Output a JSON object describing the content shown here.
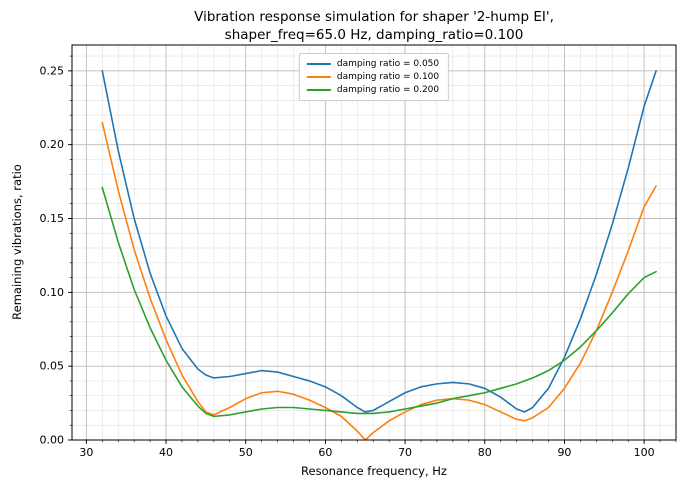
{
  "chart_data": {
    "type": "line",
    "title": "Vibration response simulation for shaper '2-hump EI', shaper_freq=65.0 Hz, damping_ratio=0.100",
    "title_lines": [
      "Vibration response simulation for shaper '2-hump EI',",
      "shaper_freq=65.0 Hz, damping_ratio=0.100"
    ],
    "xlabel": "Resonance frequency, Hz",
    "ylabel": "Remaining vibrations, ratio",
    "xlim": [
      28.2,
      104.0
    ],
    "ylim": [
      0,
      0.2675
    ],
    "x_ticks": [
      30,
      40,
      50,
      60,
      70,
      80,
      90,
      100
    ],
    "y_ticks": [
      0.0,
      0.05,
      0.1,
      0.15,
      0.2,
      0.25
    ],
    "x_minor_step": 2,
    "y_minor_step": 0.01,
    "grid": true,
    "legend_position": "upper center",
    "x": [
      32,
      34,
      36,
      38,
      40,
      42,
      44,
      45,
      46,
      48,
      50,
      52,
      54,
      56,
      58,
      60,
      62,
      64,
      65,
      66,
      68,
      70,
      72,
      74,
      76,
      78,
      80,
      82,
      84,
      85,
      86,
      88,
      90,
      92,
      94,
      96,
      98,
      100,
      101.5
    ],
    "series": [
      {
        "name": "damping ratio = 0.050",
        "color": "#1f77b4",
        "values": [
          0.25,
          0.196,
          0.15,
          0.113,
          0.084,
          0.062,
          0.048,
          0.044,
          0.042,
          0.043,
          0.045,
          0.047,
          0.046,
          0.043,
          0.04,
          0.036,
          0.03,
          0.022,
          0.019,
          0.02,
          0.026,
          0.032,
          0.036,
          0.038,
          0.039,
          0.038,
          0.035,
          0.029,
          0.021,
          0.019,
          0.022,
          0.035,
          0.056,
          0.082,
          0.112,
          0.146,
          0.184,
          0.226,
          0.25
        ]
      },
      {
        "name": "damping ratio = 0.100",
        "color": "#ff7f0e",
        "values": [
          0.215,
          0.169,
          0.129,
          0.096,
          0.068,
          0.044,
          0.026,
          0.019,
          0.017,
          0.022,
          0.028,
          0.032,
          0.033,
          0.031,
          0.027,
          0.022,
          0.016,
          0.006,
          0.0,
          0.005,
          0.013,
          0.019,
          0.024,
          0.027,
          0.028,
          0.027,
          0.024,
          0.019,
          0.014,
          0.013,
          0.015,
          0.022,
          0.035,
          0.052,
          0.074,
          0.1,
          0.128,
          0.158,
          0.172
        ]
      },
      {
        "name": "damping ratio = 0.200",
        "color": "#2ca02c",
        "values": [
          0.171,
          0.134,
          0.102,
          0.076,
          0.054,
          0.036,
          0.023,
          0.018,
          0.016,
          0.017,
          0.019,
          0.021,
          0.022,
          0.022,
          0.021,
          0.02,
          0.019,
          0.018,
          0.018,
          0.018,
          0.019,
          0.021,
          0.023,
          0.025,
          0.028,
          0.03,
          0.032,
          0.035,
          0.038,
          0.04,
          0.042,
          0.047,
          0.054,
          0.063,
          0.074,
          0.086,
          0.099,
          0.11,
          0.114
        ]
      }
    ],
    "colors": {
      "grid_major": "#bdbdbd",
      "grid_minor": "#e4e4e4",
      "axes": "#000000",
      "background": "#ffffff"
    }
  }
}
